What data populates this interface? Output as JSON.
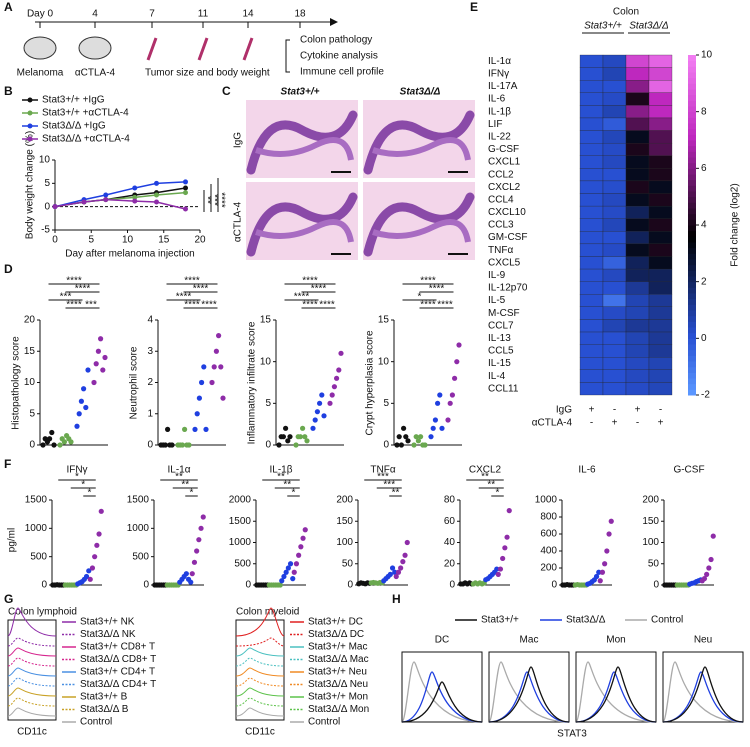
{
  "panels": {
    "A": "A",
    "B": "B",
    "C": "C",
    "D": "D",
    "E": "E",
    "F": "F",
    "G": "G",
    "H": "H"
  },
  "A": {
    "days": [
      "Day 0",
      "4",
      "7",
      "11",
      "14",
      "18"
    ],
    "melanoma": "Melanoma",
    "treatment": "αCTLA-4",
    "measure": "Tumor size and body weight",
    "outcomes": [
      "Colon pathology",
      "Cytokine analysis",
      "Immune cell profile"
    ]
  },
  "B": {
    "type": "line",
    "ylabel": "Body weight change (%)",
    "xlabel": "Day after melanoma injection",
    "x": [
      0,
      4,
      7,
      11,
      14,
      18
    ],
    "xlim": [
      0,
      20
    ],
    "xticks": [
      0,
      5,
      10,
      15,
      20
    ],
    "ylim": [
      -5,
      10
    ],
    "yticks": [
      -5,
      0,
      5,
      10
    ],
    "series": [
      {
        "name": "Stat3+/+ +IgG",
        "color": "#111111",
        "values": [
          0,
          1,
          1.5,
          2.5,
          3,
          4
        ]
      },
      {
        "name": "Stat3+/+ +αCTLA-4",
        "color": "#6aa84f",
        "values": [
          0,
          1,
          1.5,
          2,
          2.5,
          3
        ]
      },
      {
        "name": "Stat3Δ/Δ +IgG",
        "color": "#1f3fe0",
        "values": [
          0,
          1.5,
          2.5,
          4,
          5,
          5.3
        ]
      },
      {
        "name": "Stat3Δ/Δ +αCTLA-4",
        "color": "#8e2ca8",
        "values": [
          0,
          1,
          1.5,
          1.2,
          1,
          -0.5
        ]
      }
    ],
    "stars": [
      "**",
      "***",
      "****"
    ]
  },
  "C": {
    "cols": [
      "Stat3+/+",
      "Stat3Δ/Δ"
    ],
    "rows": [
      "IgG",
      "αCTLA-4"
    ]
  },
  "D": {
    "colors": [
      "#111111",
      "#6aa84f",
      "#1f3fe0",
      "#8e2ca8"
    ],
    "plots": [
      {
        "ylabel": "Histopathology score",
        "ylim": [
          0,
          20
        ],
        "yticks": [
          0,
          5,
          10,
          15,
          20
        ],
        "groups": [
          [
            0,
            1,
            0.5,
            1,
            2,
            0
          ],
          [
            0,
            1,
            0.5,
            1.5,
            1,
            0.5
          ],
          [
            3,
            5,
            7,
            9,
            6,
            12
          ],
          [
            10,
            13,
            15,
            17,
            12,
            14
          ]
        ],
        "stars": [
          "****",
          "****",
          "***",
          "***",
          "****"
        ]
      },
      {
        "ylabel": "Neutrophil score",
        "ylim": [
          0,
          4
        ],
        "yticks": [
          0,
          1,
          2,
          3,
          4
        ],
        "groups": [
          [
            0,
            0,
            0,
            0.5,
            0,
            0
          ],
          [
            0,
            0,
            0,
            0.5,
            0,
            0
          ],
          [
            0.5,
            1,
            1.5,
            2,
            2.5,
            0.5
          ],
          [
            2,
            2.5,
            3,
            3.5,
            2.5,
            1.5
          ]
        ],
        "stars": [
          "****",
          "****",
          "****",
          "****",
          "****"
        ]
      },
      {
        "ylabel": "Inflammatory infiltrate score",
        "ylim": [
          0,
          15
        ],
        "yticks": [
          0,
          5,
          10,
          15
        ],
        "groups": [
          [
            0,
            1,
            1,
            2,
            0.5,
            1
          ],
          [
            0,
            1,
            1,
            2,
            1,
            0.5
          ],
          [
            2,
            3,
            4,
            5,
            6,
            3.5
          ],
          [
            5,
            6,
            7,
            8,
            9,
            11
          ]
        ],
        "stars": [
          "****",
          "****",
          "****",
          "****",
          "****"
        ]
      },
      {
        "ylabel": "Crypt hyperplasia score",
        "ylim": [
          0,
          15
        ],
        "yticks": [
          0,
          5,
          10,
          15
        ],
        "groups": [
          [
            0,
            1,
            0,
            2,
            1,
            0.5
          ],
          [
            0,
            1,
            0.5,
            1,
            0,
            0
          ],
          [
            1,
            2,
            3,
            5,
            6,
            2
          ],
          [
            3,
            5,
            6,
            8,
            10,
            12
          ]
        ],
        "stars": [
          "****",
          "****",
          "*",
          "****",
          "****"
        ]
      }
    ]
  },
  "E": {
    "header": "Colon",
    "cols": [
      "Stat3+/+",
      "Stat3Δ/Δ"
    ],
    "rows": [
      "IL-1α",
      "IFNγ",
      "IL-17A",
      "IL-6",
      "IL-1β",
      "LIF",
      "IL-22",
      "G-CSF",
      "CXCL1",
      "CCL2",
      "CXCL2",
      "CCL4",
      "CXCL10",
      "CCL3",
      "GM-CSF",
      "TNFα",
      "CXCL5",
      "IL-9",
      "IL-12p70",
      "IL-5",
      "M-CSF",
      "CCL7",
      "IL-13",
      "CCL5",
      "IL-15",
      "IL-4",
      "CCL11"
    ],
    "values": [
      [
        0,
        0.3,
        8,
        9
      ],
      [
        0,
        0.5,
        7,
        8
      ],
      [
        0,
        0,
        6,
        9
      ],
      [
        0,
        0.2,
        4,
        7
      ],
      [
        0,
        0.5,
        6,
        7
      ],
      [
        0,
        -0.3,
        5,
        6
      ],
      [
        0,
        0.4,
        3,
        5
      ],
      [
        0,
        0.2,
        4,
        5
      ],
      [
        0,
        0.3,
        3,
        4
      ],
      [
        0,
        0,
        3,
        4
      ],
      [
        0,
        0.1,
        4,
        3
      ],
      [
        0,
        0.3,
        3,
        4
      ],
      [
        0,
        0.2,
        2,
        3
      ],
      [
        0,
        0.4,
        3,
        4
      ],
      [
        0,
        0,
        2,
        3
      ],
      [
        0,
        0.2,
        3,
        4
      ],
      [
        0,
        -0.5,
        2,
        3
      ],
      [
        0,
        0.3,
        2,
        2
      ],
      [
        0,
        0,
        1,
        2
      ],
      [
        0,
        -1,
        0.5,
        1
      ],
      [
        0,
        0.2,
        0.5,
        1
      ],
      [
        0,
        0.5,
        1,
        1
      ],
      [
        0,
        0,
        0.5,
        1
      ],
      [
        0,
        0,
        0.5,
        1
      ],
      [
        0,
        0,
        0.3,
        0.5
      ],
      [
        0,
        0,
        0.3,
        0.5
      ],
      [
        0,
        0,
        0.2,
        0.4
      ]
    ],
    "clim": [
      -2,
      10
    ],
    "cticks": [
      -2,
      0,
      2,
      4,
      6,
      8,
      10
    ],
    "clabel": "Fold change (log2)",
    "conditions": [
      {
        "name": "IgG",
        "marks": [
          "+",
          "-",
          "+",
          "-"
        ]
      },
      {
        "name": "αCTLA-4",
        "marks": [
          "-",
          "+",
          "-",
          "+"
        ]
      }
    ]
  },
  "F": {
    "ylabel": "pg/ml",
    "colors": [
      "#111111",
      "#6aa84f",
      "#1f3fe0",
      "#8e2ca8"
    ],
    "plots": [
      {
        "title": "IFNγ",
        "ylim": [
          0,
          1500
        ],
        "yticks": [
          0,
          500,
          1000,
          1500
        ],
        "groups": [
          [
            0,
            0,
            5,
            0,
            0,
            0
          ],
          [
            0,
            0,
            0,
            0,
            0,
            0
          ],
          [
            20,
            40,
            60,
            100,
            150,
            250
          ],
          [
            100,
            300,
            500,
            700,
            900,
            1300
          ]
        ],
        "stars": [
          "*",
          "*",
          "*"
        ]
      },
      {
        "title": "IL-1α",
        "ylim": [
          0,
          1500
        ],
        "yticks": [
          0,
          500,
          1000,
          1500
        ],
        "groups": [
          [
            0,
            0,
            0,
            0,
            0,
            0
          ],
          [
            0,
            0,
            0,
            0,
            0,
            0
          ],
          [
            50,
            100,
            150,
            200,
            100,
            50
          ],
          [
            200,
            400,
            600,
            800,
            1000,
            1200
          ]
        ],
        "stars": [
          "**",
          "**",
          "*"
        ]
      },
      {
        "title": "IL-1β",
        "ylim": [
          0,
          2000
        ],
        "yticks": [
          0,
          500,
          1000,
          1500,
          2000
        ],
        "groups": [
          [
            0,
            0,
            0,
            0,
            0,
            0
          ],
          [
            0,
            0,
            0,
            0,
            0,
            0
          ],
          [
            100,
            200,
            300,
            400,
            500,
            150
          ],
          [
            300,
            500,
            700,
            900,
            1100,
            1300
          ]
        ],
        "stars": [
          "**",
          "**",
          "*"
        ]
      },
      {
        "title": "TNFα",
        "ylim": [
          0,
          200
        ],
        "yticks": [
          0,
          50,
          100,
          150,
          200
        ],
        "groups": [
          [
            3,
            5,
            4,
            3,
            5,
            4
          ],
          [
            5,
            6,
            5,
            4,
            6,
            5
          ],
          [
            10,
            15,
            20,
            25,
            40,
            30
          ],
          [
            20,
            30,
            40,
            55,
            70,
            100
          ]
        ],
        "stars": [
          "***",
          "***",
          "**"
        ]
      },
      {
        "title": "CXCL2",
        "ylim": [
          0,
          80
        ],
        "yticks": [
          0,
          20,
          40,
          60,
          80
        ],
        "groups": [
          [
            1,
            1,
            2,
            1,
            2,
            1
          ],
          [
            1,
            2,
            1,
            2,
            1,
            2
          ],
          [
            5,
            6,
            8,
            10,
            12,
            15
          ],
          [
            10,
            15,
            25,
            35,
            45,
            70
          ]
        ],
        "stars": [
          "**",
          "**",
          "*"
        ]
      },
      {
        "title": "IL-6",
        "ylim": [
          0,
          1000
        ],
        "yticks": [
          0,
          200,
          400,
          600,
          800,
          1000
        ],
        "groups": [
          [
            0,
            0,
            5,
            0,
            0,
            0
          ],
          [
            0,
            5,
            0,
            0,
            0,
            0
          ],
          [
            10,
            20,
            40,
            60,
            100,
            150
          ],
          [
            50,
            150,
            250,
            400,
            600,
            750
          ]
        ],
        "stars": []
      },
      {
        "title": "G-CSF",
        "ylim": [
          0,
          200
        ],
        "yticks": [
          0,
          50,
          100,
          150,
          200
        ],
        "groups": [
          [
            0,
            0,
            0,
            0,
            0,
            0
          ],
          [
            0,
            0,
            0,
            0,
            0,
            0
          ],
          [
            2,
            4,
            5,
            8,
            10,
            12
          ],
          [
            10,
            15,
            25,
            40,
            60,
            115
          ]
        ],
        "stars": []
      }
    ]
  },
  "G": {
    "xlabel": "CD11c",
    "plots": [
      {
        "title": "Colon lymphoid",
        "legend": [
          {
            "name": "Stat3+/+ NK",
            "color": "#8e2ca8"
          },
          {
            "name": "Stat3Δ/Δ NK",
            "color": "#8e2ca8"
          },
          {
            "name": "Stat3+/+ CD8+ T",
            "color": "#d6278f"
          },
          {
            "name": "Stat3Δ/Δ CD8+ T",
            "color": "#d6278f"
          },
          {
            "name": "Stat3+/+ CD4+ T",
            "color": "#4a90e2"
          },
          {
            "name": "Stat3Δ/Δ CD4+ T",
            "color": "#4a90e2"
          },
          {
            "name": "Stat3+/+ B",
            "color": "#c9a227"
          },
          {
            "name": "Stat3Δ/Δ B",
            "color": "#c9a227"
          },
          {
            "name": "Control",
            "color": "#aaaaaa"
          }
        ]
      },
      {
        "title": "Colon myeloid",
        "legend": [
          {
            "name": "Stat3+/+ DC",
            "color": "#e02020"
          },
          {
            "name": "Stat3Δ/Δ DC",
            "color": "#e02020"
          },
          {
            "name": "Stat3+/+ Mac",
            "color": "#4ac0c0"
          },
          {
            "name": "Stat3Δ/Δ Mac",
            "color": "#4ac0c0"
          },
          {
            "name": "Stat3+/+ Neu",
            "color": "#f08a24"
          },
          {
            "name": "Stat3Δ/Δ Neu",
            "color": "#f08a24"
          },
          {
            "name": "Stat3+/+ Mon",
            "color": "#5cc24a"
          },
          {
            "name": "Stat3Δ/Δ Mon",
            "color": "#5cc24a"
          },
          {
            "name": "Control",
            "color": "#aaaaaa"
          }
        ]
      }
    ]
  },
  "H": {
    "legend": [
      {
        "name": "Stat3+/+",
        "color": "#111111"
      },
      {
        "name": "Stat3Δ/Δ",
        "color": "#1f3fe0"
      },
      {
        "name": "Control",
        "color": "#aaaaaa"
      }
    ],
    "cells": [
      "DC",
      "Mac",
      "Mon",
      "Neu"
    ],
    "xlabel": "STAT3"
  }
}
